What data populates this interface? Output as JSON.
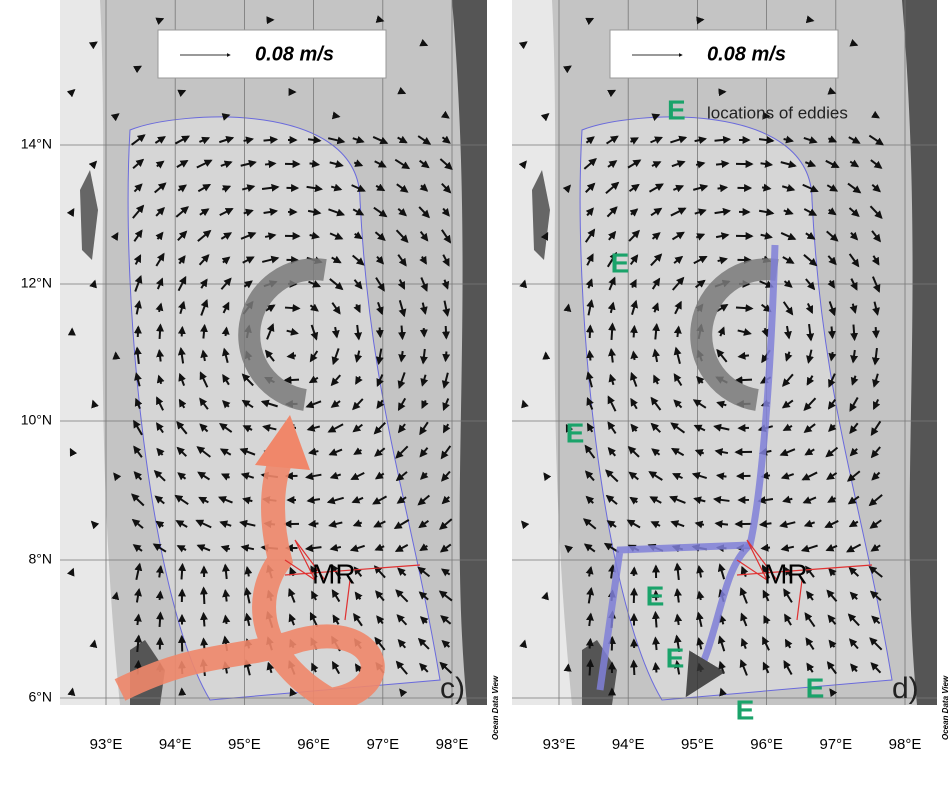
{
  "panels": [
    {
      "scale_label": "0.08 m/s",
      "annotation": "MR",
      "panel_label": "c)",
      "credit": "Ocean Data View",
      "lon_labels": [
        "93°E",
        "94°E",
        "95°E",
        "96°E",
        "97°E",
        "98°E"
      ],
      "lat_labels": [
        "14°N",
        "12°N",
        "10°N",
        "8°N",
        "6°N"
      ]
    },
    {
      "scale_label": "0.08 m/s",
      "legend_symbol": "E",
      "legend_text": "locations of eddies",
      "annotation": "MR",
      "panel_label": "d)",
      "credit": "Ocean Data View",
      "eddy_markers": [
        "E",
        "E",
        "E",
        "E",
        "E",
        "E"
      ],
      "lon_labels": [
        "93°E",
        "94°E",
        "95°E",
        "96°E",
        "97°E",
        "98°E"
      ]
    }
  ]
}
